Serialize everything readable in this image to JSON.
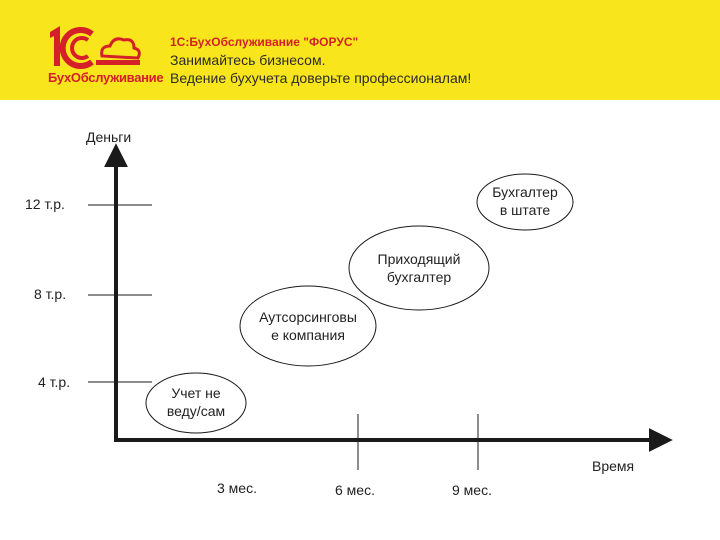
{
  "header": {
    "logo_caption": "БухОбслуживание",
    "company": "1С:БухОбслуживание \"ФОРУС\"",
    "tagline_line1": "Занимайтесь бизнесом.",
    "tagline_line2": "Ведение бухучета доверьте профессионалам!"
  },
  "colors": {
    "banner": "#f9e51c",
    "brand_red": "#d5202a",
    "axis": "#1a1a1a"
  },
  "diagram": {
    "y_axis_label": "Деньги",
    "x_axis_label": "Время",
    "y_ticks": [
      "12 т.р.",
      "8 т.р.",
      "4 т.р."
    ],
    "x_ticks": [
      "3 мес.",
      "6 мес.",
      "9 мес."
    ],
    "bubbles": [
      {
        "line1": "Учет не",
        "line2": "веду/сам"
      },
      {
        "line1": "Аутсорсинговы",
        "line2": "е компания"
      },
      {
        "line1": "Приходящий",
        "line2": "бухгалтер"
      },
      {
        "line1": "Бухгалтер",
        "line2": "в штате"
      }
    ]
  }
}
